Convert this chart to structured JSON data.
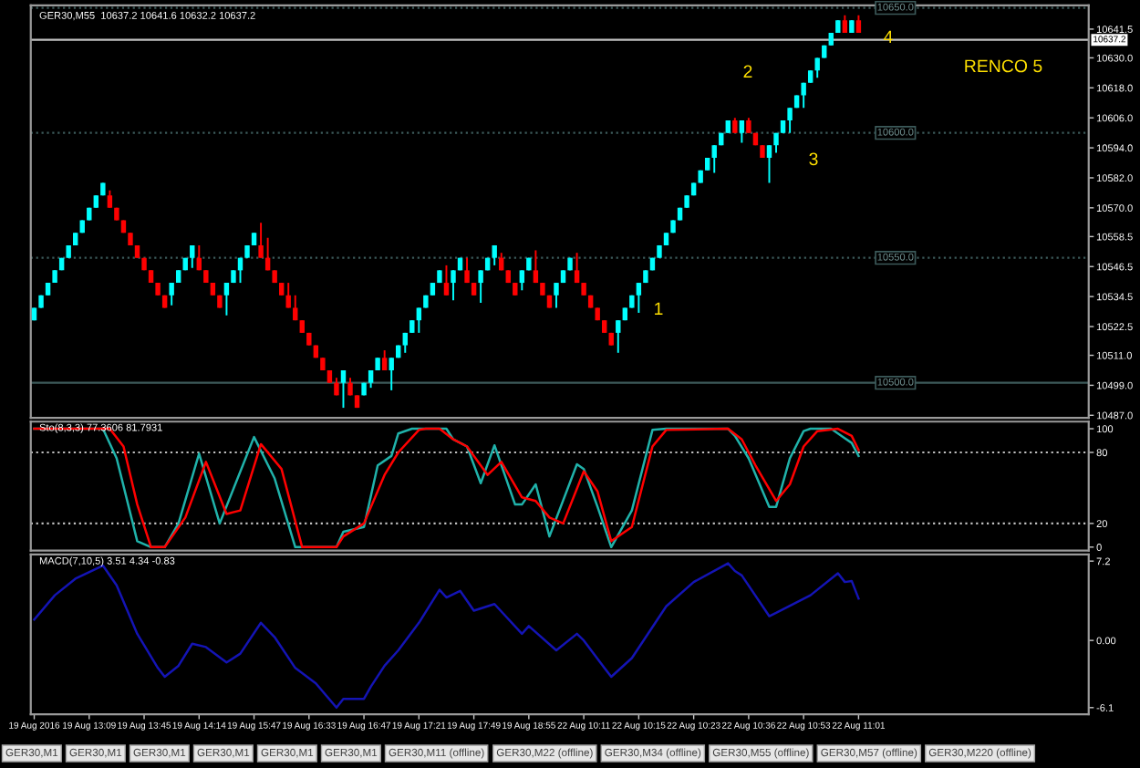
{
  "chart_data": [
    {
      "type": "candlestick",
      "title": "GER30,M55  10637.2 10641.6 10632.2 10637.2",
      "categories": [
        null,
        null,
        null,
        null,
        null,
        null,
        null,
        null,
        null,
        null,
        null,
        null,
        null,
        null,
        null,
        null,
        null,
        null,
        null,
        null,
        null,
        null,
        null,
        null,
        null,
        null,
        null,
        null,
        null,
        null,
        null,
        null,
        null,
        null,
        null,
        null,
        null,
        null,
        null,
        null,
        null,
        null,
        null,
        null,
        null,
        null,
        null,
        null,
        null,
        null,
        null,
        null,
        null,
        null,
        null,
        null,
        null,
        null,
        null,
        null,
        null,
        null,
        null,
        null,
        null,
        null,
        null,
        null,
        null,
        null,
        null,
        null,
        null,
        null,
        null,
        null,
        null,
        null,
        null,
        null,
        null,
        null,
        null,
        null,
        null,
        null,
        null,
        null,
        null,
        null,
        null,
        null,
        null,
        null,
        null,
        null,
        null,
        null,
        null,
        null,
        null,
        null,
        null,
        null,
        null,
        null,
        null,
        null,
        null,
        null,
        null,
        null,
        null,
        null,
        null,
        null,
        null,
        null,
        null,
        null,
        null,
        null,
        null,
        null,
        null,
        null,
        null,
        null,
        null,
        null,
        null,
        null,
        null,
        null,
        null,
        null,
        null,
        null,
        null,
        null,
        null,
        null,
        null,
        null,
        null,
        null,
        null,
        null,
        null,
        null,
        null,
        null,
        null,
        null
      ],
      "ohlc": [
        [
          10525,
          10530,
          10525,
          10530
        ],
        [
          10530,
          10535,
          10530,
          10535
        ],
        [
          10535,
          10540,
          10535,
          10540
        ],
        [
          10540,
          10545,
          10540,
          10545
        ],
        [
          10545,
          10550,
          10545,
          10550
        ],
        [
          10550,
          10555,
          10550,
          10555
        ],
        [
          10555,
          10560,
          10555,
          10560
        ],
        [
          10560,
          10565,
          10560,
          10565
        ],
        [
          10565,
          10570,
          10565,
          10570
        ],
        [
          10570,
          10575,
          10570,
          10575
        ],
        [
          10575,
          10580,
          10575,
          10580
        ],
        [
          10575,
          10577,
          10570,
          10570
        ],
        [
          10570,
          10570,
          10565,
          10565
        ],
        [
          10565,
          10565,
          10560,
          10560
        ],
        [
          10560,
          10560,
          10555,
          10555
        ],
        [
          10555,
          10555,
          10550,
          10550
        ],
        [
          10550,
          10550,
          10545,
          10545
        ],
        [
          10545,
          10545,
          10540,
          10540
        ],
        [
          10540,
          10540,
          10535,
          10535
        ],
        [
          10535,
          10535,
          10530,
          10530
        ],
        [
          10535,
          10540,
          10531,
          10540
        ],
        [
          10540,
          10545,
          10540,
          10545
        ],
        [
          10545,
          10550,
          10545,
          10550
        ],
        [
          10550,
          10555,
          10546,
          10555
        ],
        [
          10550,
          10555,
          10545,
          10545
        ],
        [
          10545,
          10545,
          10540,
          10540
        ],
        [
          10540,
          10540,
          10535,
          10535
        ],
        [
          10535,
          10535,
          10530,
          10530
        ],
        [
          10535,
          10540,
          10527,
          10540
        ],
        [
          10540,
          10545,
          10540,
          10545
        ],
        [
          10545,
          10550,
          10540,
          10550
        ],
        [
          10550,
          10555,
          10550,
          10555
        ],
        [
          10555,
          10560,
          10555,
          10560
        ],
        [
          10555,
          10564,
          10550,
          10550
        ],
        [
          10550,
          10558,
          10545,
          10545
        ],
        [
          10545,
          10545,
          10540,
          10540
        ],
        [
          10540,
          10540,
          10535,
          10535
        ],
        [
          10535,
          10540,
          10530,
          10530
        ],
        [
          10530,
          10535,
          10525,
          10525
        ],
        [
          10525,
          10525,
          10520,
          10520
        ],
        [
          10520,
          10520,
          10515,
          10515
        ],
        [
          10515,
          10515,
          10510,
          10510
        ],
        [
          10510,
          10510,
          10505,
          10505
        ],
        [
          10505,
          10505,
          10500,
          10500
        ],
        [
          10500,
          10502,
          10495,
          10495
        ],
        [
          10500,
          10505,
          10490,
          10505
        ],
        [
          10500,
          10502,
          10495,
          10495
        ],
        [
          10495,
          10495,
          10490,
          10490
        ],
        [
          10495,
          10500,
          10495,
          10500
        ],
        [
          10500,
          10505,
          10498,
          10505
        ],
        [
          10505,
          10510,
          10505,
          10510
        ],
        [
          10510,
          10513,
          10505,
          10505
        ],
        [
          10505,
          10510,
          10497,
          10510
        ],
        [
          10510,
          10515,
          10510,
          10515
        ],
        [
          10515,
          10520,
          10512,
          10520
        ],
        [
          10520,
          10525,
          10520,
          10525
        ],
        [
          10525,
          10530,
          10520,
          10530
        ],
        [
          10530,
          10535,
          10530,
          10535
        ],
        [
          10535,
          10540,
          10535,
          10540
        ],
        [
          10540,
          10545,
          10540,
          10545
        ],
        [
          10540,
          10547,
          10535,
          10535
        ],
        [
          10540,
          10545,
          10533,
          10545
        ],
        [
          10545,
          10550,
          10545,
          10550
        ],
        [
          10545,
          10550,
          10540,
          10540
        ],
        [
          10540,
          10540,
          10535,
          10535
        ],
        [
          10540,
          10545,
          10532,
          10545
        ],
        [
          10545,
          10550,
          10545,
          10550
        ],
        [
          10550,
          10555,
          10547,
          10555
        ],
        [
          10550,
          10552,
          10545,
          10545
        ],
        [
          10545,
          10545,
          10540,
          10540
        ],
        [
          10540,
          10540,
          10535,
          10535
        ],
        [
          10540,
          10545,
          10537,
          10545
        ],
        [
          10545,
          10550,
          10545,
          10550
        ],
        [
          10545,
          10553,
          10540,
          10540
        ],
        [
          10540,
          10540,
          10535,
          10535
        ],
        [
          10535,
          10535,
          10530,
          10530
        ],
        [
          10535,
          10540,
          10530,
          10540
        ],
        [
          10540,
          10545,
          10540,
          10545
        ],
        [
          10545,
          10550,
          10545,
          10550
        ],
        [
          10545,
          10552,
          10540,
          10540
        ],
        [
          10540,
          10540,
          10535,
          10535
        ],
        [
          10535,
          10535,
          10530,
          10530
        ],
        [
          10530,
          10530,
          10525,
          10525
        ],
        [
          10525,
          10525,
          10520,
          10520
        ],
        [
          10520,
          10520,
          10515,
          10515
        ],
        [
          10520,
          10525,
          10512,
          10525
        ],
        [
          10525,
          10530,
          10525,
          10530
        ],
        [
          10530,
          10535,
          10530,
          10535
        ],
        [
          10535,
          10540,
          10528,
          10540
        ],
        [
          10540,
          10545,
          10540,
          10545
        ],
        [
          10545,
          10550,
          10545,
          10550
        ],
        [
          10550,
          10555,
          10550,
          10555
        ],
        [
          10555,
          10560,
          10555,
          10560
        ],
        [
          10560,
          10565,
          10560,
          10565
        ],
        [
          10565,
          10570,
          10565,
          10570
        ],
        [
          10570,
          10575,
          10570,
          10575
        ],
        [
          10575,
          10580,
          10575,
          10580
        ],
        [
          10580,
          10585,
          10580,
          10585
        ],
        [
          10585,
          10590,
          10585,
          10590
        ],
        [
          10590,
          10595,
          10584,
          10595
        ],
        [
          10595,
          10600,
          10595,
          10600
        ],
        [
          10600,
          10605,
          10600,
          10605
        ],
        [
          10605,
          10606,
          10600,
          10600
        ],
        [
          10600,
          10605,
          10596,
          10605
        ],
        [
          10605,
          10606,
          10600,
          10600
        ],
        [
          10600,
          10600,
          10595,
          10595
        ],
        [
          10595,
          10595,
          10590,
          10590
        ],
        [
          10590,
          10595,
          10580,
          10595
        ],
        [
          10595,
          10600,
          10592,
          10600
        ],
        [
          10600,
          10605,
          10600,
          10605
        ],
        [
          10605,
          10610,
          10600,
          10610
        ],
        [
          10610,
          10615,
          10610,
          10615
        ],
        [
          10615,
          10620,
          10610,
          10620
        ],
        [
          10620,
          10625,
          10620,
          10625
        ],
        [
          10625,
          10630,
          10622,
          10630
        ],
        [
          10630,
          10635,
          10630,
          10635
        ],
        [
          10635,
          10640,
          10635,
          10640
        ],
        [
          10640,
          10645,
          10640,
          10645
        ],
        [
          10645,
          10647,
          10640,
          10640
        ],
        [
          10640,
          10645,
          10640,
          10645
        ],
        [
          10645,
          10647,
          10640,
          10640
        ],
        null,
        null,
        null,
        null,
        null,
        null,
        null,
        null,
        null,
        null,
        null,
        null,
        null,
        null,
        null,
        null,
        null,
        null,
        null,
        null,
        null,
        null,
        null,
        null,
        null,
        null,
        null,
        null,
        null,
        null,
        null,
        null,
        null
      ],
      "colors": [
        "#00ffff",
        "#00ffff",
        "#00ffff",
        "#00ffff",
        "#00ffff",
        "#00ffff",
        "#00ffff",
        "#00ffff",
        "#00ffff",
        "#00ffff",
        "#00ffff",
        "#ff0000",
        "#ff0000",
        "#ff0000",
        "#ff0000",
        "#ff0000",
        "#ff0000",
        "#ff0000",
        "#ff0000",
        "#ff0000",
        "#00ffff",
        "#00ffff",
        "#00ffff",
        "#00ffff",
        "#ff0000",
        "#ff0000",
        "#ff0000",
        "#ff0000",
        "#00ffff",
        "#00ffff",
        "#00ffff",
        "#00ffff",
        "#00ffff",
        "#ff0000",
        "#ff0000",
        "#ff0000",
        "#ff0000",
        "#ff0000",
        "#ff0000",
        "#ff0000",
        "#ff0000",
        "#ff0000",
        "#ff0000",
        "#ff0000",
        "#ff0000",
        "#00ffff",
        "#ff0000",
        "#ff0000",
        "#00ffff",
        "#00ffff",
        "#00ffff",
        "#ff0000",
        "#00ffff",
        "#00ffff",
        "#00ffff",
        "#00ffff",
        "#00ffff",
        "#00ffff",
        "#00ffff",
        "#00ffff",
        "#ff0000",
        "#00ffff",
        "#00ffff",
        "#ff0000",
        "#ff0000",
        "#00ffff",
        "#00ffff",
        "#00ffff",
        "#ff0000",
        "#ff0000",
        "#ff0000",
        "#00ffff",
        "#00ffff",
        "#ff0000",
        "#ff0000",
        "#ff0000",
        "#00ffff",
        "#00ffff",
        "#00ffff",
        "#ff0000",
        "#ff0000",
        "#ff0000",
        "#ff0000",
        "#ff0000",
        "#ff0000",
        "#00ffff",
        "#00ffff",
        "#00ffff",
        "#00ffff",
        "#00ffff",
        "#00ffff",
        "#00ffff",
        "#00ffff",
        "#00ffff",
        "#00ffff",
        "#00ffff",
        "#00ffff",
        "#00ffff",
        "#00ffff",
        "#00ffff",
        "#00ffff",
        "#00ffff",
        "#ff0000",
        "#00ffff",
        "#ff0000",
        "#ff0000",
        "#ff0000",
        "#00ffff",
        "#00ffff",
        "#00ffff",
        "#00ffff",
        "#00ffff",
        "#00ffff",
        "#00ffff",
        "#00ffff",
        "#00ffff",
        "#00ffff",
        "#00ffff",
        "#ff0000",
        "#00ffff",
        "#ff0000",
        null,
        null,
        null,
        null,
        null,
        null,
        null,
        null,
        null,
        null,
        null,
        null,
        null,
        null,
        null,
        null,
        null,
        null,
        null,
        null,
        null,
        null,
        null,
        null,
        null,
        null,
        null,
        null,
        null,
        null,
        null,
        null,
        null
      ],
      "ylim": [
        10486,
        10651
      ],
      "yticks": [
        {
          "value": 10641.5,
          "label": "10641.5"
        },
        {
          "value": 10630.0,
          "label": "10630.0"
        },
        {
          "value": 10618.0,
          "label": "10618.0"
        },
        {
          "value": 10606.0,
          "label": "10606.0"
        },
        {
          "value": 10594.0,
          "label": "10594.0"
        },
        {
          "value": 10582.0,
          "label": "10582.0"
        },
        {
          "value": 10570.0,
          "label": "10570.0"
        },
        {
          "value": 10558.5,
          "label": "10558.5"
        },
        {
          "value": 10546.5,
          "label": "10546.5"
        },
        {
          "value": 10534.5,
          "label": "10534.5"
        },
        {
          "value": 10522.5,
          "label": "10522.5"
        },
        {
          "value": 10511.0,
          "label": "10511.0"
        },
        {
          "value": 10499.0,
          "label": "10499.0"
        },
        {
          "value": 10487.0,
          "label": "10487.0"
        }
      ],
      "tick_labels": "y",
      "ref_lines": [
        {
          "axis": "y",
          "value": 10650,
          "label": "10650.0",
          "color": "#3c5a5a",
          "line_style": "dotted"
        },
        {
          "axis": "y",
          "value": 10600,
          "label": "10600.0",
          "color": "#3c5a5a",
          "line_style": "dotted"
        },
        {
          "axis": "y",
          "value": 10550,
          "label": "10550.0",
          "color": "#3c5a5a",
          "line_style": "dotted"
        },
        {
          "axis": "y",
          "value": 10500,
          "label": "10500.0",
          "color": "#3c5a5a",
          "line_style": "solid"
        },
        {
          "axis": "y",
          "value": 10637.2,
          "label": "10637.2",
          "color": "#c0c0c0",
          "line_style": "solid"
        }
      ],
      "annotations": [
        "1",
        "2",
        "3",
        "4",
        "RENCO 5"
      ]
    },
    {
      "type": "line",
      "title": "Sto(8,3,3) 77.3606 81.7931",
      "categories": [
        null,
        null,
        null,
        null,
        null,
        null,
        null,
        null,
        null,
        null,
        null,
        null,
        null,
        null,
        null,
        null,
        null,
        null,
        null,
        null,
        null,
        null,
        null,
        null,
        null,
        null,
        null,
        null,
        null,
        null,
        null,
        null,
        null,
        null,
        null,
        null,
        null,
        null,
        null,
        null,
        null,
        null,
        null,
        null,
        null,
        null,
        null,
        null,
        null,
        null,
        null,
        null,
        null,
        null,
        null,
        null,
        null,
        null,
        null,
        null,
        null,
        null,
        null,
        null,
        null,
        null,
        null,
        null,
        null,
        null,
        null,
        null,
        null,
        null,
        null,
        null,
        null,
        null,
        null,
        null,
        null,
        null,
        null,
        null,
        null,
        null,
        null,
        null,
        null,
        null,
        null,
        null,
        null,
        null,
        null,
        null,
        null,
        null,
        null,
        null,
        null,
        null,
        null,
        null,
        null,
        null,
        null,
        null,
        null,
        null,
        null,
        null,
        null,
        null,
        null,
        null,
        null,
        null,
        null,
        null,
        null,
        null,
        null,
        null,
        null,
        null,
        null,
        null,
        null,
        null,
        null,
        null,
        null,
        null,
        null,
        null,
        null,
        null,
        null,
        null,
        null,
        null,
        null,
        null,
        null,
        null,
        null,
        null,
        null,
        null,
        null,
        null,
        null,
        null
      ],
      "series": [
        {
          "color": "#20b2aa",
          "values": [
            100,
            null,
            null,
            null,
            null,
            null,
            null,
            null,
            null,
            null,
            100,
            null,
            75,
            null,
            null,
            5,
            null,
            0,
            null,
            0,
            null,
            20,
            null,
            null,
            79,
            null,
            null,
            20,
            null,
            null,
            null,
            null,
            93,
            null,
            null,
            58,
            null,
            null,
            0,
            null,
            null,
            null,
            null,
            null,
            0,
            13,
            null,
            null,
            17,
            null,
            69,
            null,
            77,
            96,
            null,
            100,
            null,
            null,
            null,
            null,
            100,
            91,
            null,
            85,
            null,
            54,
            null,
            86,
            null,
            null,
            36,
            36,
            null,
            53,
            null,
            9,
            null,
            null,
            null,
            70,
            66,
            null,
            34,
            null,
            0,
            null,
            null,
            31,
            null,
            null,
            99,
            null,
            100,
            null,
            null,
            null,
            null,
            null,
            null,
            null,
            null,
            100,
            94,
            null,
            75,
            null,
            null,
            34,
            34,
            null,
            75,
            null,
            98,
            100,
            null,
            null,
            100,
            null,
            92,
            88,
            77,
            null,
            null,
            null,
            null,
            null,
            null,
            null,
            null,
            null,
            null,
            null,
            null,
            null,
            null,
            null,
            null,
            null,
            null,
            null,
            null,
            null,
            null,
            null,
            null,
            null,
            null,
            null,
            null,
            null,
            null,
            null,
            null,
            null
          ]
        },
        {
          "color": "#ff0000",
          "values": [
            100,
            null,
            null,
            null,
            null,
            null,
            null,
            null,
            null,
            null,
            null,
            100,
            null,
            85,
            null,
            36,
            null,
            0,
            null,
            0,
            null,
            null,
            25,
            null,
            null,
            72,
            null,
            null,
            28,
            null,
            31,
            null,
            null,
            87,
            null,
            null,
            66,
            null,
            null,
            0,
            null,
            null,
            null,
            null,
            0,
            9,
            null,
            null,
            20,
            null,
            null,
            61,
            null,
            80,
            null,
            null,
            99,
            100,
            null,
            100,
            null,
            91,
            null,
            85,
            null,
            null,
            61,
            null,
            72,
            null,
            null,
            42,
            null,
            39,
            null,
            25,
            null,
            20,
            null,
            null,
            64,
            null,
            47,
            null,
            5,
            null,
            null,
            17,
            null,
            null,
            85,
            null,
            99,
            null,
            null,
            null,
            null,
            null,
            null,
            null,
            null,
            100,
            null,
            91,
            null,
            69,
            null,
            null,
            39,
            null,
            53,
            null,
            85,
            null,
            98,
            null,
            null,
            100,
            null,
            94,
            82,
            null,
            null,
            null,
            null,
            null,
            null,
            null,
            null,
            null,
            null,
            null,
            null,
            null,
            null,
            null,
            null,
            null,
            null,
            null,
            null,
            null,
            null,
            null,
            null,
            null,
            null,
            null,
            null,
            null,
            null,
            null,
            null,
            null
          ]
        }
      ],
      "ylim": [
        -3,
        106
      ],
      "yticks": [
        100,
        80,
        20,
        0
      ],
      "tick_labels": "y",
      "line_style": "solid",
      "ref_lines": [
        {
          "axis": "y",
          "value": 80,
          "color": "#c0c0c0",
          "line_style": "dotted"
        },
        {
          "axis": "y",
          "value": 20,
          "color": "#c0c0c0",
          "line_style": "dotted"
        }
      ]
    },
    {
      "type": "line",
      "title": "MACD(7,10,5) 3.51 4.34 -0.83",
      "categories": [
        "19 Aug 2016",
        null,
        null,
        null,
        null,
        null,
        null,
        null,
        "19 Aug 13:09",
        null,
        null,
        null,
        null,
        null,
        null,
        null,
        "19 Aug 13:45",
        null,
        null,
        null,
        null,
        null,
        null,
        null,
        "19 Aug 14:14",
        null,
        null,
        null,
        null,
        null,
        null,
        null,
        "19 Aug 15:47",
        null,
        null,
        null,
        null,
        null,
        null,
        null,
        "19 Aug 16:33",
        null,
        null,
        null,
        null,
        null,
        null,
        null,
        "19 Aug 16:47",
        null,
        null,
        null,
        null,
        null,
        null,
        null,
        "19 Aug 17:21",
        null,
        null,
        null,
        null,
        null,
        null,
        null,
        "19 Aug 17:49",
        null,
        null,
        null,
        null,
        null,
        null,
        null,
        "19 Aug 18:55",
        null,
        null,
        null,
        null,
        null,
        null,
        null,
        "22 Aug 10:11",
        null,
        null,
        null,
        null,
        null,
        null,
        null,
        "22 Aug 10:15",
        null,
        null,
        null,
        null,
        null,
        null,
        null,
        "22 Aug 10:23",
        null,
        null,
        null,
        null,
        null,
        null,
        null,
        "22 Aug 10:36",
        null,
        null,
        null,
        null,
        null,
        null,
        null,
        "22 Aug 10:53",
        null,
        null,
        null,
        null,
        null,
        null,
        null,
        "22 Aug 11:01",
        null,
        null,
        null,
        null,
        null,
        null,
        null,
        null,
        null,
        null,
        null,
        null,
        null,
        null,
        null,
        null,
        null,
        null,
        null,
        null,
        null,
        null,
        null,
        null,
        null,
        null,
        null,
        null,
        null,
        null,
        null,
        null,
        null
      ],
      "series": [
        {
          "color": "#1414b4",
          "values": [
            1.9,
            null,
            null,
            4.1,
            null,
            null,
            5.6,
            null,
            null,
            null,
            6.8,
            null,
            5.0,
            null,
            null,
            0.6,
            null,
            null,
            -2.5,
            -3.3,
            null,
            -2.3,
            null,
            -0.3,
            null,
            -0.6,
            null,
            null,
            -2.0,
            null,
            -1.2,
            null,
            null,
            1.6,
            null,
            0.3,
            null,
            null,
            -2.5,
            null,
            null,
            -3.9,
            null,
            null,
            -6.1,
            -5.3,
            null,
            null,
            -5.3,
            -4.2,
            null,
            -2.3,
            null,
            -0.9,
            null,
            null,
            1.6,
            null,
            null,
            4.6,
            3.9,
            null,
            4.5,
            null,
            2.7,
            null,
            null,
            3.3,
            null,
            null,
            null,
            0.6,
            1.3,
            null,
            null,
            null,
            -0.9,
            null,
            null,
            0.6,
            0.0,
            null,
            null,
            -2.5,
            -3.3,
            null,
            null,
            -1.6,
            null,
            null,
            null,
            null,
            3.1,
            null,
            null,
            null,
            5.3,
            null,
            null,
            null,
            null,
            7.0,
            6.3,
            5.9,
            null,
            null,
            null,
            2.2,
            2.5,
            null,
            null,
            null,
            null,
            4.1,
            null,
            null,
            null,
            6.1,
            5.3,
            5.4,
            3.8,
            null,
            null,
            null,
            null,
            null,
            null,
            null,
            null,
            null,
            null,
            null,
            null,
            null,
            null,
            null,
            null,
            null,
            null,
            null,
            null,
            null,
            null,
            null,
            null,
            null,
            null,
            null,
            null,
            null,
            null,
            null,
            null,
            null
          ]
        }
      ],
      "ylim": [
        -6.7,
        7.8
      ],
      "yticks": [
        7.2,
        {
          "value": 0,
          "label": "0.00"
        },
        -6.1
      ],
      "line_style": "solid",
      "annotations": [
        "GER30,M1",
        "GER30,M1",
        "GER30,M1",
        "GER30,M1",
        "GER30,M1",
        "GER30,M1",
        "GER30,M11 (offline)",
        "GER30,M22 (offline)",
        "GER30,M34 (offline)",
        "GER30,M55 (offline)",
        "GER30,M57 (offline)",
        "GER30,M220 (offline)"
      ]
    }
  ]
}
